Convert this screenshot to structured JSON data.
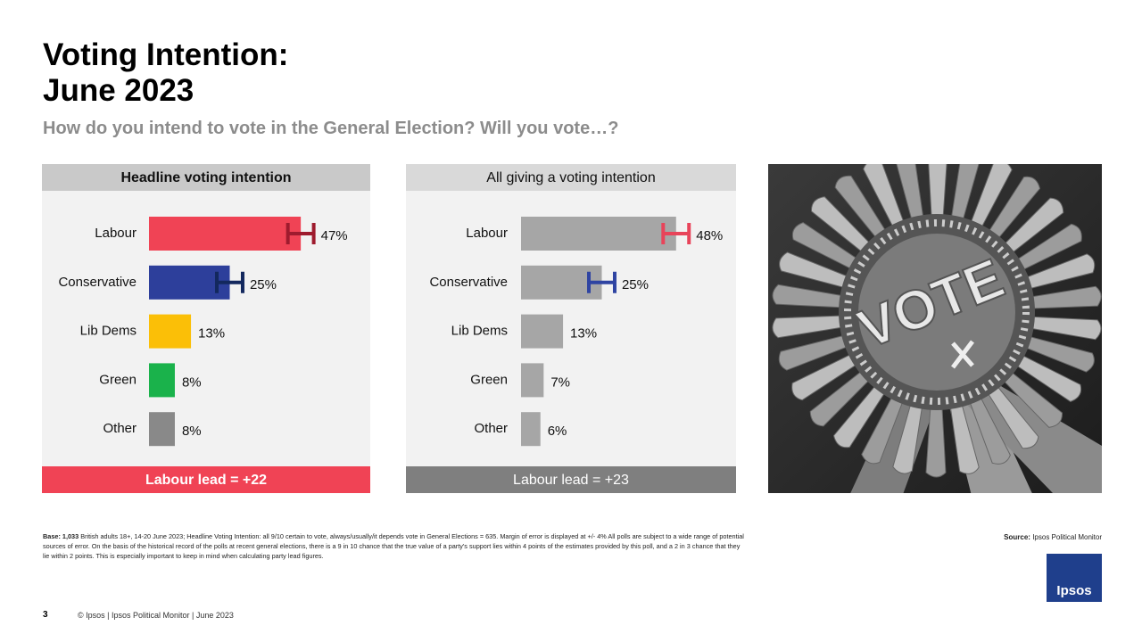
{
  "header": {
    "title": [
      "Voting Intention:",
      "June 2023"
    ],
    "subtitle": "How do you intend to vote in the General Election? Will you vote…?"
  },
  "chart_data": [
    {
      "type": "bar",
      "title": "Headline voting intention",
      "categories": [
        "Labour",
        "Conservative",
        "Lib Dems",
        "Green",
        "Other"
      ],
      "values": [
        47,
        25,
        13,
        8,
        8
      ],
      "value_labels": [
        "47%",
        "25%",
        "13%",
        "8%",
        "8%"
      ],
      "errors": [
        4,
        4,
        null,
        null,
        null
      ],
      "colors": [
        "#f04355",
        "#2d3f9b",
        "#fbbf07",
        "#1ab24b",
        "#898989"
      ],
      "error_colors": [
        "#9e1b2e",
        "#13285e",
        null,
        null,
        null
      ],
      "annotation": "Labour lead = +22",
      "annotation_color": "#f04355"
    },
    {
      "type": "bar",
      "title": "All giving a voting intention",
      "categories": [
        "Labour",
        "Conservative",
        "Lib Dems",
        "Green",
        "Other"
      ],
      "values": [
        48,
        25,
        13,
        7,
        6
      ],
      "value_labels": [
        "48%",
        "25%",
        "13%",
        "7%",
        "6%"
      ],
      "errors": [
        4,
        4,
        null,
        null,
        null
      ],
      "color": "#a6a6a6",
      "error_colors": [
        "#e8445a",
        "#2f44a2",
        null,
        null,
        null
      ],
      "annotation": "Labour lead = +23",
      "annotation_color": "#7f7f7f"
    }
  ],
  "photo": {
    "label": "VOTE"
  },
  "footer": {
    "base_label": "Base:",
    "base_count": "1,033",
    "base_text": " British adults 18+, 14-20 June 2023; Headline Voting Intention:  all 9/10 certain to vote, always/usually/it depends vote in General Elections = 635. Margin of error is displayed at +/- 4% All polls are subject to a wide range of potential sources of error. On the basis of the historical record of the polls at recent general elections, there is a 9 in 10 chance that the true value of a party's support lies within 4 points of the estimates provided by this poll, and a 2 in 3 chance that they lie within 2 points. This is especially important to keep in mind when calculating party lead figures.",
    "source_label": "Source:",
    "source_text": " Ipsos Political Monitor",
    "page_number": "3",
    "copyright": "© Ipsos | Ipsos Political Monitor | June 2023"
  },
  "logo": {
    "label": "Ipsos"
  }
}
